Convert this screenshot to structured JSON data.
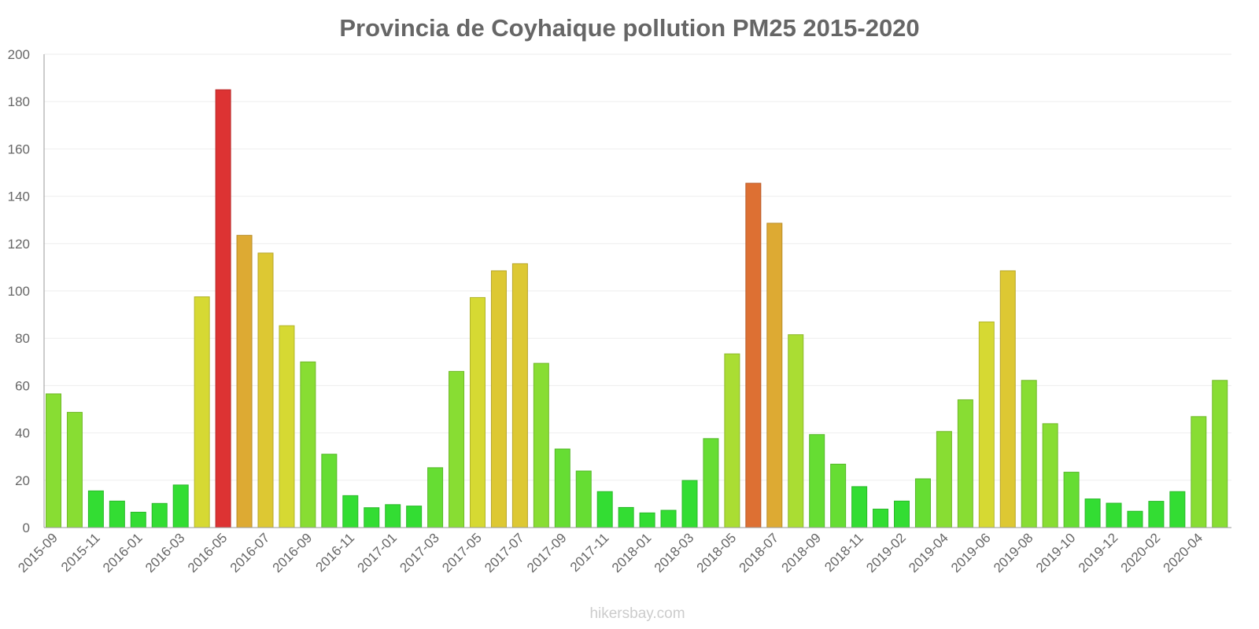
{
  "chart_data": {
    "type": "bar",
    "title": "Provincia de Coyhaique pollution PM25 2015-2020",
    "xlabel": "",
    "ylabel": "",
    "ylim": [
      0,
      200
    ],
    "yticks": [
      0,
      20,
      40,
      60,
      80,
      100,
      120,
      140,
      160,
      180,
      200
    ],
    "grid": true,
    "categories": [
      "2015-09",
      "2015-10",
      "2015-11",
      "2015-12",
      "2016-01",
      "2016-02",
      "2016-03",
      "2016-04",
      "2016-05",
      "2016-06",
      "2016-07",
      "2016-08",
      "2016-09",
      "2016-10",
      "2016-11",
      "2016-12",
      "2017-01",
      "2017-02",
      "2017-03",
      "2017-04",
      "2017-05",
      "2017-06",
      "2017-07",
      "2017-08",
      "2017-09",
      "2017-10",
      "2017-11",
      "2017-12",
      "2018-01",
      "2018-02",
      "2018-03",
      "2018-04",
      "2018-05",
      "2018-06",
      "2018-07",
      "2018-08",
      "2018-09",
      "2018-10",
      "2018-11",
      "2018-12",
      "2019-02",
      "2019-03",
      "2019-04",
      "2019-05",
      "2019-06",
      "2019-07",
      "2019-08",
      "2019-09",
      "2019-10",
      "2019-11",
      "2019-12",
      "2020-01",
      "2020-02",
      "2020-03",
      "2020-04",
      "2020-05"
    ],
    "values": [
      56.5,
      48.7,
      15.5,
      11.2,
      6.5,
      10.2,
      18,
      97.5,
      185,
      123.5,
      116,
      85.3,
      70,
      31,
      13.5,
      8.4,
      9.7,
      9.1,
      25.3,
      66,
      97.2,
      108.5,
      111.5,
      69.4,
      33.2,
      23.9,
      15.2,
      8.5,
      6.2,
      7.3,
      19.9,
      37.6,
      73.4,
      145.5,
      128.6,
      81.5,
      39.3,
      26.8,
      17.3,
      7.8,
      11.2,
      20.6,
      40.6,
      54,
      86.9,
      108.5,
      62.2,
      43.9,
      23.4,
      12.1,
      10.3,
      6.9,
      11.1,
      15.2,
      46.9,
      62.2
    ]
  },
  "watermark": "hikersbay.com"
}
